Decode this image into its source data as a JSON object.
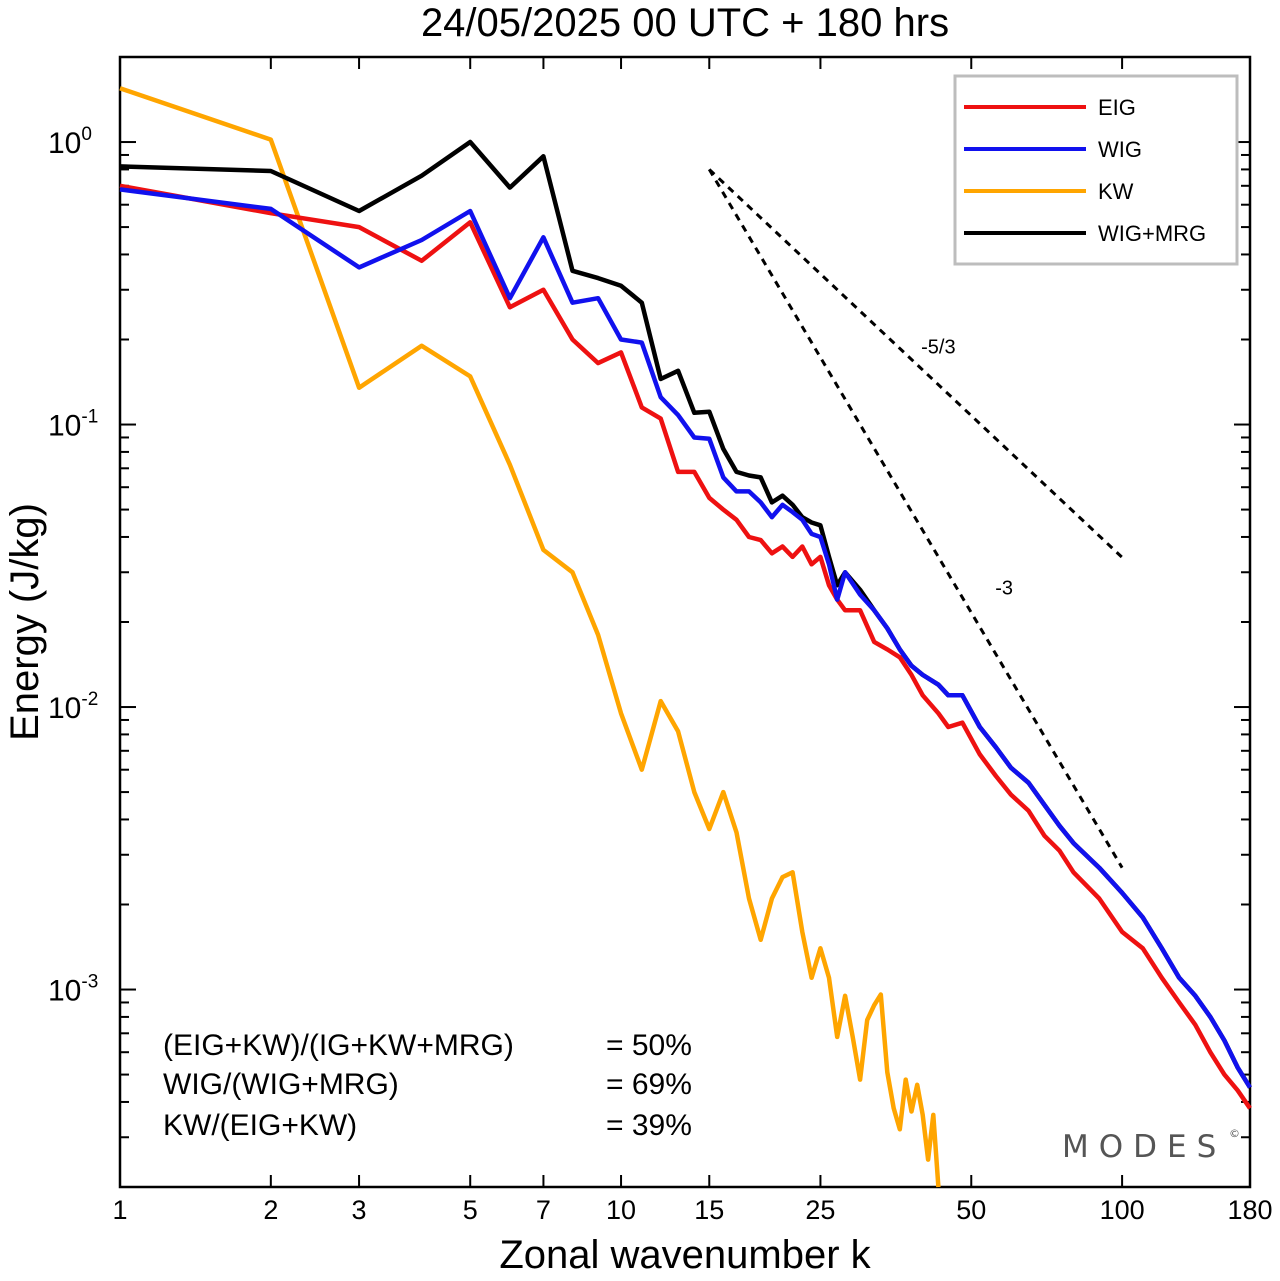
{
  "title": "24/05/2025  00 UTC  + 180 hrs",
  "brand": "MODES",
  "brand_mark": "©",
  "ratios": [
    {
      "label": "(EIG+KW)/(IG+KW+MRG)",
      "value": "= 50%"
    },
    {
      "label": "WIG/(WIG+MRG)",
      "value": "= 69%"
    },
    {
      "label": "KW/(EIG+KW)",
      "value": "= 39%"
    }
  ],
  "chart_data": {
    "type": "line",
    "title": "24/05/2025  00 UTC  + 180 hrs",
    "xlabel": "Zonal wavenumber k",
    "ylabel": "Energy (J/kg)",
    "xscale": "log",
    "yscale": "log",
    "xlim": [
      1,
      180
    ],
    "ylim": [
      0.0002,
      2.0
    ],
    "xticks": [
      1,
      2,
      3,
      5,
      7,
      10,
      15,
      25,
      50,
      100,
      180
    ],
    "xtick_labels": [
      "1",
      "2",
      "3",
      "5",
      "7",
      "10",
      "15",
      "25",
      "50",
      "100",
      "180"
    ],
    "yticks": [
      {
        "value": 1,
        "base": "10",
        "exp": "0"
      },
      {
        "value": 0.1,
        "base": "10",
        "exp": "-1"
      },
      {
        "value": 0.01,
        "base": "10",
        "exp": "-2"
      },
      {
        "value": 0.001,
        "base": "10",
        "exp": "-3"
      }
    ],
    "legend_position": "top-right",
    "series": [
      {
        "name": "EIG",
        "color": "#ee1111",
        "points": [
          [
            1,
            0.7
          ],
          [
            2,
            0.56
          ],
          [
            3,
            0.5
          ],
          [
            4,
            0.38
          ],
          [
            5,
            0.52
          ],
          [
            6,
            0.26
          ],
          [
            7,
            0.3
          ],
          [
            8,
            0.2
          ],
          [
            9,
            0.165
          ],
          [
            10,
            0.18
          ],
          [
            11,
            0.115
          ],
          [
            12,
            0.105
          ],
          [
            13,
            0.068
          ],
          [
            14,
            0.068
          ],
          [
            15,
            0.055
          ],
          [
            16,
            0.05
          ],
          [
            17,
            0.046
          ],
          [
            18,
            0.04
          ],
          [
            19,
            0.039
          ],
          [
            20,
            0.035
          ],
          [
            21,
            0.037
          ],
          [
            22,
            0.034
          ],
          [
            23,
            0.037
          ],
          [
            24,
            0.032
          ],
          [
            25,
            0.034
          ],
          [
            26,
            0.027
          ],
          [
            27,
            0.024
          ],
          [
            28,
            0.022
          ],
          [
            30,
            0.022
          ],
          [
            32,
            0.017
          ],
          [
            34,
            0.016
          ],
          [
            36,
            0.015
          ],
          [
            38,
            0.013
          ],
          [
            40,
            0.011
          ],
          [
            43,
            0.0095
          ],
          [
            45,
            0.0085
          ],
          [
            48,
            0.0088
          ],
          [
            52,
            0.0068
          ],
          [
            56,
            0.0057
          ],
          [
            60,
            0.0049
          ],
          [
            65,
            0.0043
          ],
          [
            70,
            0.0035
          ],
          [
            75,
            0.0031
          ],
          [
            80,
            0.0026
          ],
          [
            90,
            0.0021
          ],
          [
            100,
            0.0016
          ],
          [
            110,
            0.0014
          ],
          [
            120,
            0.0011
          ],
          [
            130,
            0.0009
          ],
          [
            140,
            0.00075
          ],
          [
            150,
            0.0006
          ],
          [
            160,
            0.0005
          ],
          [
            170,
            0.00044
          ],
          [
            180,
            0.00038
          ]
        ]
      },
      {
        "name": "WIG",
        "color": "#1111ee",
        "points": [
          [
            1,
            0.68
          ],
          [
            2,
            0.58
          ],
          [
            3,
            0.36
          ],
          [
            4,
            0.45
          ],
          [
            5,
            0.57
          ],
          [
            6,
            0.28
          ],
          [
            7,
            0.46
          ],
          [
            8,
            0.27
          ],
          [
            9,
            0.28
          ],
          [
            10,
            0.2
          ],
          [
            11,
            0.195
          ],
          [
            12,
            0.125
          ],
          [
            13,
            0.108
          ],
          [
            14,
            0.09
          ],
          [
            15,
            0.089
          ],
          [
            16,
            0.065
          ],
          [
            17,
            0.058
          ],
          [
            18,
            0.058
          ],
          [
            19,
            0.053
          ],
          [
            20,
            0.047
          ],
          [
            21,
            0.052
          ],
          [
            22,
            0.049
          ],
          [
            23,
            0.046
          ],
          [
            24,
            0.041
          ],
          [
            25,
            0.04
          ],
          [
            26,
            0.032
          ],
          [
            27,
            0.024
          ],
          [
            28,
            0.03
          ],
          [
            30,
            0.025
          ],
          [
            32,
            0.022
          ],
          [
            34,
            0.019
          ],
          [
            36,
            0.016
          ],
          [
            38,
            0.014
          ],
          [
            40,
            0.013
          ],
          [
            43,
            0.012
          ],
          [
            45,
            0.011
          ],
          [
            48,
            0.011
          ],
          [
            52,
            0.0085
          ],
          [
            56,
            0.0072
          ],
          [
            60,
            0.0061
          ],
          [
            65,
            0.0054
          ],
          [
            70,
            0.0045
          ],
          [
            75,
            0.0038
          ],
          [
            80,
            0.0033
          ],
          [
            90,
            0.0027
          ],
          [
            100,
            0.0022
          ],
          [
            110,
            0.0018
          ],
          [
            120,
            0.0014
          ],
          [
            130,
            0.0011
          ],
          [
            140,
            0.00095
          ],
          [
            150,
            0.0008
          ],
          [
            160,
            0.00066
          ],
          [
            170,
            0.00053
          ],
          [
            180,
            0.00045
          ]
        ]
      },
      {
        "name": "KW",
        "color": "#ffa500",
        "points": [
          [
            1,
            1.55
          ],
          [
            2,
            1.02
          ],
          [
            3,
            0.135
          ],
          [
            4,
            0.19
          ],
          [
            5,
            0.148
          ],
          [
            6,
            0.072
          ],
          [
            7,
            0.036
          ],
          [
            8,
            0.03
          ],
          [
            9,
            0.018
          ],
          [
            10,
            0.0095
          ],
          [
            11,
            0.006
          ],
          [
            12,
            0.0105
          ],
          [
            13,
            0.0082
          ],
          [
            14,
            0.005
          ],
          [
            15,
            0.0037
          ],
          [
            16,
            0.005
          ],
          [
            17,
            0.0036
          ],
          [
            18,
            0.0021
          ],
          [
            19,
            0.0015
          ],
          [
            20,
            0.0021
          ],
          [
            21,
            0.0025
          ],
          [
            22,
            0.0026
          ],
          [
            23,
            0.0016
          ],
          [
            24,
            0.0011
          ],
          [
            25,
            0.0014
          ],
          [
            26,
            0.0011
          ],
          [
            27,
            0.00068
          ],
          [
            28,
            0.00095
          ],
          [
            29,
            0.00068
          ],
          [
            30,
            0.00048
          ],
          [
            31,
            0.00078
          ],
          [
            32,
            0.00088
          ],
          [
            33,
            0.00096
          ],
          [
            34,
            0.00051
          ],
          [
            35,
            0.00038
          ],
          [
            36,
            0.00032
          ],
          [
            37,
            0.00048
          ],
          [
            38,
            0.00037
          ],
          [
            39,
            0.00046
          ],
          [
            40,
            0.00036
          ],
          [
            41,
            0.00025
          ],
          [
            42,
            0.00036
          ],
          [
            43,
            0.0002
          ]
        ]
      },
      {
        "name": "WIG+MRG",
        "color": "#000000",
        "points": [
          [
            1,
            0.82
          ],
          [
            2,
            0.79
          ],
          [
            3,
            0.57
          ],
          [
            4,
            0.76
          ],
          [
            5,
            1.0
          ],
          [
            6,
            0.69
          ],
          [
            7,
            0.89
          ],
          [
            8,
            0.35
          ],
          [
            9,
            0.33
          ],
          [
            10,
            0.31
          ],
          [
            11,
            0.27
          ],
          [
            12,
            0.145
          ],
          [
            13,
            0.155
          ],
          [
            14,
            0.11
          ],
          [
            15,
            0.111
          ],
          [
            16,
            0.082
          ],
          [
            17,
            0.068
          ],
          [
            18,
            0.066
          ],
          [
            19,
            0.065
          ],
          [
            20,
            0.053
          ],
          [
            21,
            0.056
          ],
          [
            22,
            0.052
          ],
          [
            23,
            0.047
          ],
          [
            24,
            0.045
          ],
          [
            25,
            0.044
          ],
          [
            26,
            0.034
          ],
          [
            27,
            0.027
          ],
          [
            28,
            0.03
          ],
          [
            30,
            0.026
          ],
          [
            32,
            0.022
          ],
          [
            34,
            0.019
          ],
          [
            36,
            0.016
          ],
          [
            38,
            0.014
          ],
          [
            40,
            0.013
          ],
          [
            43,
            0.012
          ],
          [
            45,
            0.011
          ],
          [
            48,
            0.011
          ],
          [
            52,
            0.0085
          ],
          [
            56,
            0.0072
          ],
          [
            60,
            0.0061
          ],
          [
            65,
            0.0054
          ],
          [
            70,
            0.0045
          ],
          [
            75,
            0.0038
          ],
          [
            80,
            0.0033
          ],
          [
            90,
            0.0027
          ],
          [
            100,
            0.0022
          ],
          [
            110,
            0.0018
          ],
          [
            120,
            0.0014
          ],
          [
            130,
            0.0011
          ],
          [
            140,
            0.00095
          ],
          [
            150,
            0.0008
          ],
          [
            160,
            0.00066
          ],
          [
            170,
            0.00053
          ],
          [
            180,
            0.00045
          ]
        ]
      }
    ],
    "reference_lines": [
      {
        "label": "-5/3",
        "slope": -1.6667,
        "x": [
          15,
          100
        ],
        "y0": 0.8
      },
      {
        "label": "-3",
        "slope": -3,
        "x": [
          15,
          100
        ],
        "y0": 0.8
      }
    ]
  }
}
